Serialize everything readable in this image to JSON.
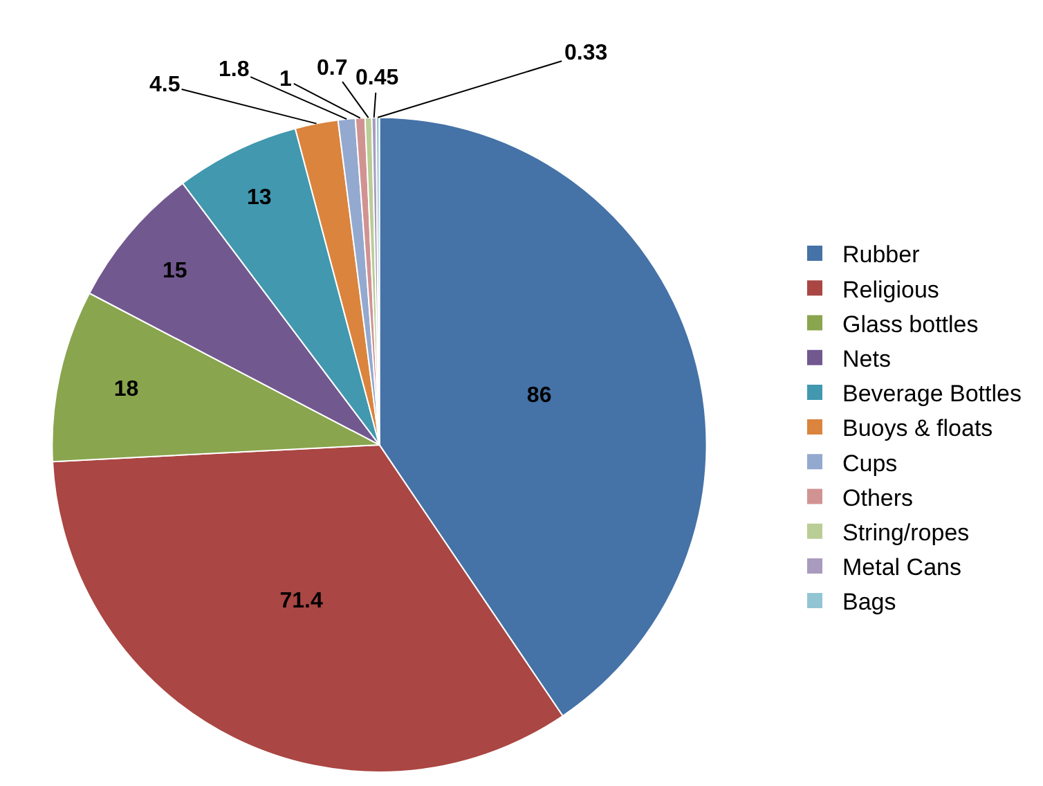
{
  "chart_data": {
    "type": "pie",
    "categories": [
      "Rubber",
      "Religious",
      "Glass bottles",
      "Nets",
      "Beverage Bottles",
      "Buoys & floats",
      "Cups",
      "Others",
      "String/ropes",
      "Metal Cans",
      "Bags"
    ],
    "values": [
      86,
      71.4,
      18,
      15,
      13,
      4.5,
      1.8,
      1,
      0.7,
      0.45,
      0.33
    ],
    "colors": [
      "#4572a7",
      "#aa4643",
      "#89a54e",
      "#71588f",
      "#4198af",
      "#db843d",
      "#93a9cf",
      "#d19392",
      "#b9cd96",
      "#a99bbd",
      "#92c5d4"
    ],
    "data_labels": true,
    "legend": "right"
  }
}
